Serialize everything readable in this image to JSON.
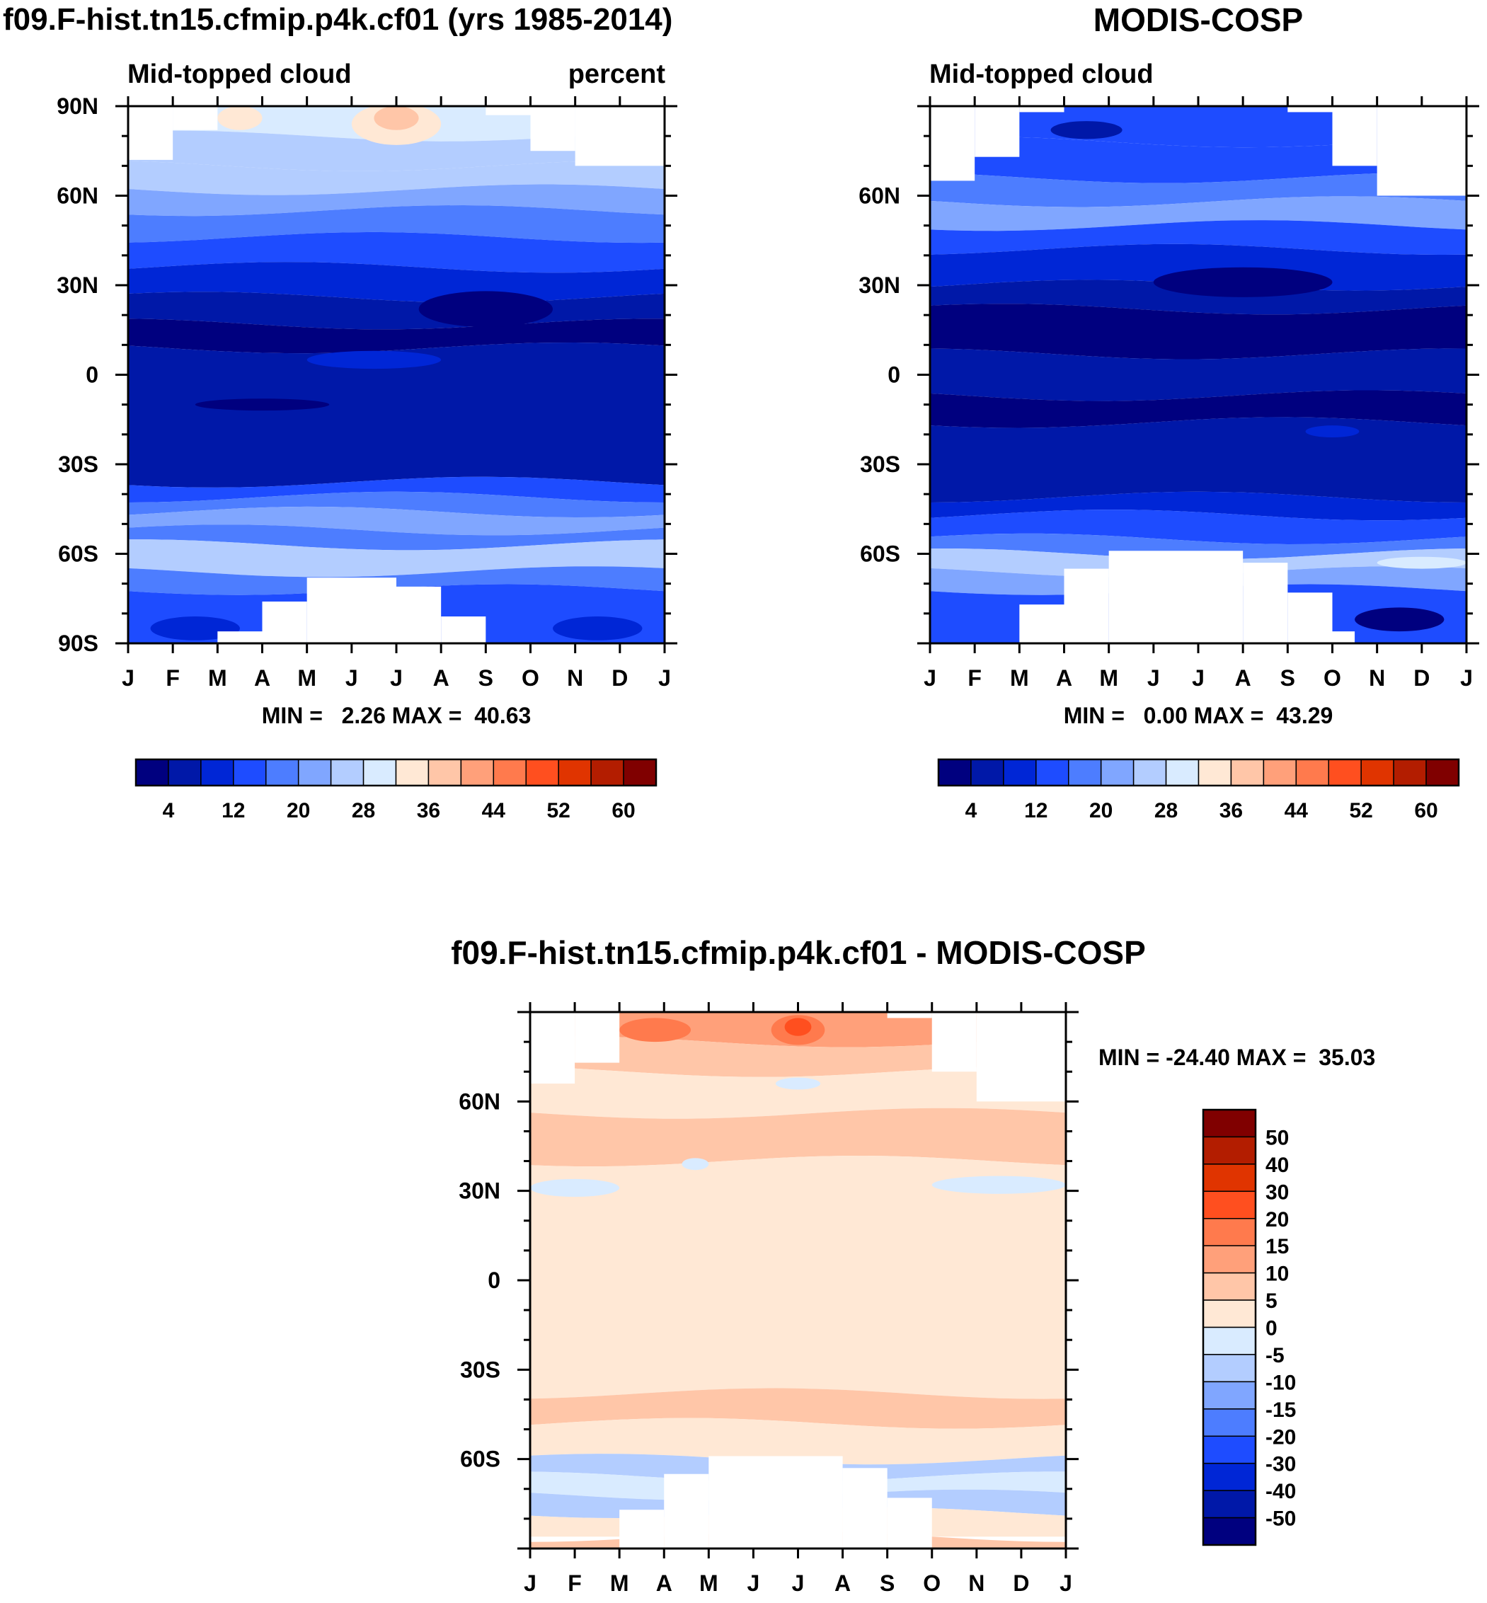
{
  "chart_data": [
    {
      "type": "heatmap",
      "title": "f09.F-hist.tn15.cfmip.p4k.cf01 (yrs 1985-2014)",
      "subtitle_left": "Mid-topped cloud",
      "subtitle_right": "percent",
      "x_ticks": [
        "J",
        "F",
        "M",
        "A",
        "M",
        "J",
        "J",
        "A",
        "S",
        "O",
        "N",
        "D",
        "J"
      ],
      "y_ticks": [
        "90N",
        "60N",
        "30N",
        "0",
        "30S",
        "60S",
        "90S"
      ],
      "ylim": [
        -90,
        90
      ],
      "stats": "MIN =   2.26 MAX =  40.63",
      "min": 2.26,
      "max": 40.63,
      "colorbar": {
        "levels": [
          4,
          8,
          12,
          16,
          20,
          24,
          28,
          32,
          36,
          40,
          44,
          48,
          52,
          56,
          60
        ],
        "tick_labels": [
          "4",
          "12",
          "20",
          "28",
          "36",
          "44",
          "52",
          "60"
        ],
        "colors": [
          "#00007f",
          "#0018a8",
          "#0026d6",
          "#1e4cff",
          "#4d7dff",
          "#80a6ff",
          "#b3cdff",
          "#d9ebff",
          "#ffe8d5",
          "#ffc6a8",
          "#ffa07a",
          "#ff7a4d",
          "#ff4f1f",
          "#e03400",
          "#b31d00",
          "#800000"
        ]
      },
      "lat_bands": [
        {
          "lat_top": 90,
          "lat_bot": 80,
          "value": 28
        },
        {
          "lat_top": 80,
          "lat_bot": 70,
          "value": 27
        },
        {
          "lat_top": 70,
          "lat_bot": 62,
          "value": 25
        },
        {
          "lat_top": 62,
          "lat_bot": 55,
          "value": 22
        },
        {
          "lat_top": 55,
          "lat_bot": 46,
          "value": 18
        },
        {
          "lat_top": 46,
          "lat_bot": 36,
          "value": 14
        },
        {
          "lat_top": 36,
          "lat_bot": 26,
          "value": 10
        },
        {
          "lat_top": 26,
          "lat_bot": 17,
          "value": 6
        },
        {
          "lat_top": 17,
          "lat_bot": 9,
          "value": 3
        },
        {
          "lat_top": 9,
          "lat_bot": -36,
          "value": 6
        },
        {
          "lat_top": -36,
          "lat_bot": -41,
          "value": 14
        },
        {
          "lat_top": -41,
          "lat_bot": -46,
          "value": 18
        },
        {
          "lat_top": -46,
          "lat_bot": -52,
          "value": 22
        },
        {
          "lat_top": -52,
          "lat_bot": -57,
          "value": 19
        },
        {
          "lat_top": -57,
          "lat_bot": -66,
          "value": 25
        },
        {
          "lat_top": -66,
          "lat_bot": -72,
          "value": 18
        },
        {
          "lat_top": -72,
          "lat_bot": -90,
          "value": 13
        }
      ],
      "features": [
        {
          "month": 6.0,
          "lat": 84,
          "dm": 1.0,
          "dlat": 7,
          "value": 34
        },
        {
          "month": 6.0,
          "lat": 86,
          "dm": 0.5,
          "dlat": 4,
          "value": 37
        },
        {
          "month": 2.5,
          "lat": 86,
          "dm": 0.5,
          "dlat": 4,
          "value": 34
        },
        {
          "month": 8.0,
          "lat": 22,
          "dm": 1.5,
          "dlat": 6,
          "value": 3
        },
        {
          "month": 5.5,
          "lat": 5,
          "dm": 1.5,
          "dlat": 3,
          "value": 10
        },
        {
          "month": 3.0,
          "lat": -10,
          "dm": 1.5,
          "dlat": 2,
          "value": 3
        },
        {
          "month": 10.5,
          "lat": -85,
          "dm": 1.0,
          "dlat": 4,
          "value": 10
        },
        {
          "month": 1.5,
          "lat": -85,
          "dm": 1.0,
          "dlat": 4,
          "value": 10
        }
      ],
      "missing": [
        {
          "m0": 0,
          "m1": 1,
          "lat_top": 90,
          "lat_bot": 72
        },
        {
          "m0": 1,
          "m1": 2,
          "lat_top": 90,
          "lat_bot": 82
        },
        {
          "m0": 8,
          "m1": 9,
          "lat_top": 90,
          "lat_bot": 87
        },
        {
          "m0": 9,
          "m1": 10,
          "lat_top": 90,
          "lat_bot": 75
        },
        {
          "m0": 10,
          "m1": 12,
          "lat_top": 90,
          "lat_bot": 70
        },
        {
          "m0": 2,
          "m1": 3,
          "lat_top": -86,
          "lat_bot": -90
        },
        {
          "m0": 3,
          "m1": 4,
          "lat_top": -76,
          "lat_bot": -90
        },
        {
          "m0": 4,
          "m1": 6,
          "lat_top": -68,
          "lat_bot": -90
        },
        {
          "m0": 6,
          "m1": 7,
          "lat_top": -71,
          "lat_bot": -90
        },
        {
          "m0": 7,
          "m1": 8,
          "lat_top": -81,
          "lat_bot": -90
        }
      ]
    },
    {
      "type": "heatmap",
      "title": "MODIS-COSP",
      "subtitle_left": "Mid-topped cloud",
      "subtitle_right": "",
      "x_ticks": [
        "J",
        "F",
        "M",
        "A",
        "M",
        "J",
        "J",
        "A",
        "S",
        "O",
        "N",
        "D",
        "J"
      ],
      "y_ticks": [
        "60N",
        "30N",
        "0",
        "30S",
        "60S"
      ],
      "ylim": [
        -90,
        90
      ],
      "stats": "MIN =   0.00 MAX =  43.29",
      "min": 0.0,
      "max": 43.29,
      "colorbar": {
        "levels": [
          4,
          8,
          12,
          16,
          20,
          24,
          28,
          32,
          36,
          40,
          44,
          48,
          52,
          56,
          60
        ],
        "tick_labels": [
          "4",
          "12",
          "20",
          "28",
          "36",
          "44",
          "52",
          "60"
        ],
        "colors": [
          "#00007f",
          "#0018a8",
          "#0026d6",
          "#1e4cff",
          "#4d7dff",
          "#80a6ff",
          "#b3cdff",
          "#d9ebff",
          "#ffe8d5",
          "#ffc6a8",
          "#ffa07a",
          "#ff7a4d",
          "#ff4f1f",
          "#e03400",
          "#b31d00",
          "#800000"
        ]
      },
      "lat_bands": [
        {
          "lat_top": 90,
          "lat_bot": 78,
          "value": 12
        },
        {
          "lat_top": 78,
          "lat_bot": 66,
          "value": 14
        },
        {
          "lat_top": 66,
          "lat_bot": 58,
          "value": 18
        },
        {
          "lat_top": 58,
          "lat_bot": 50,
          "value": 22
        },
        {
          "lat_top": 50,
          "lat_bot": 42,
          "value": 14
        },
        {
          "lat_top": 42,
          "lat_bot": 30,
          "value": 10
        },
        {
          "lat_top": 30,
          "lat_bot": 22,
          "value": 7
        },
        {
          "lat_top": 22,
          "lat_bot": 7,
          "value": 2
        },
        {
          "lat_top": 7,
          "lat_bot": -7,
          "value": 6
        },
        {
          "lat_top": -7,
          "lat_bot": -16,
          "value": 3
        },
        {
          "lat_top": -16,
          "lat_bot": -41,
          "value": 6
        },
        {
          "lat_top": -41,
          "lat_bot": -47,
          "value": 10
        },
        {
          "lat_top": -47,
          "lat_bot": -55,
          "value": 14
        },
        {
          "lat_top": -55,
          "lat_bot": -60,
          "value": 18
        },
        {
          "lat_top": -60,
          "lat_bot": -66,
          "value": 26
        },
        {
          "lat_top": -66,
          "lat_bot": -72,
          "value": 21
        },
        {
          "lat_top": -72,
          "lat_bot": -90,
          "value": 12
        }
      ],
      "features": [
        {
          "month": 3.5,
          "lat": 82,
          "dm": 0.8,
          "dlat": 3,
          "value": 5
        },
        {
          "month": 7.0,
          "lat": 31,
          "dm": 2.0,
          "dlat": 5,
          "value": 2
        },
        {
          "month": 9.0,
          "lat": -19,
          "dm": 0.6,
          "dlat": 2,
          "value": 10
        },
        {
          "month": 11.0,
          "lat": -63,
          "dm": 1.0,
          "dlat": 2,
          "value": 30
        },
        {
          "month": 10.5,
          "lat": -82,
          "dm": 1.0,
          "dlat": 4,
          "value": 3
        }
      ],
      "missing": [
        {
          "m0": 0,
          "m1": 1,
          "lat_top": 90,
          "lat_bot": 65
        },
        {
          "m0": 1,
          "m1": 2,
          "lat_top": 90,
          "lat_bot": 73
        },
        {
          "m0": 2,
          "m1": 3,
          "lat_top": 90,
          "lat_bot": 88
        },
        {
          "m0": 8,
          "m1": 9,
          "lat_top": 90,
          "lat_bot": 88
        },
        {
          "m0": 9,
          "m1": 10,
          "lat_top": 90,
          "lat_bot": 70
        },
        {
          "m0": 10,
          "m1": 12,
          "lat_top": 90,
          "lat_bot": 60
        },
        {
          "m0": 2,
          "m1": 3,
          "lat_top": -77,
          "lat_bot": -90
        },
        {
          "m0": 3,
          "m1": 4,
          "lat_top": -65,
          "lat_bot": -90
        },
        {
          "m0": 4,
          "m1": 7,
          "lat_top": -59,
          "lat_bot": -90
        },
        {
          "m0": 7,
          "m1": 8,
          "lat_top": -63,
          "lat_bot": -90
        },
        {
          "m0": 8,
          "m1": 9,
          "lat_top": -73,
          "lat_bot": -90
        },
        {
          "m0": 9,
          "m1": 9.5,
          "lat_top": -86,
          "lat_bot": -90
        }
      ]
    },
    {
      "type": "heatmap",
      "title": "f09.F-hist.tn15.cfmip.p4k.cf01 - MODIS-COSP",
      "x_ticks": [
        "J",
        "F",
        "M",
        "A",
        "M",
        "J",
        "J",
        "A",
        "S",
        "O",
        "N",
        "D",
        "J"
      ],
      "y_ticks": [
        "60N",
        "30N",
        "0",
        "30S",
        "60S"
      ],
      "ylim": [
        -90,
        90
      ],
      "stats": "MIN = -24.40 MAX =  35.03",
      "min": -24.4,
      "max": 35.03,
      "colorbar": {
        "levels": [
          -50,
          -40,
          -30,
          -20,
          -15,
          -10,
          -5,
          0,
          5,
          10,
          15,
          20,
          30,
          40,
          50
        ],
        "tick_labels": [
          "50",
          "40",
          "30",
          "20",
          "15",
          "10",
          "5",
          "0",
          "-5",
          "-10",
          "-15",
          "-20",
          "-30",
          "-40",
          "-50"
        ],
        "colors": [
          "#00007f",
          "#0018a8",
          "#0026d6",
          "#1e4cff",
          "#4d7dff",
          "#80a6ff",
          "#b3cdff",
          "#d9ebff",
          "#ffe8d5",
          "#ffc6a8",
          "#ffa07a",
          "#ff7a4d",
          "#ff4f1f",
          "#e03400",
          "#b31d00",
          "#800000"
        ]
      },
      "lat_bands": [
        {
          "lat_top": 90,
          "lat_bot": 80,
          "value": 13
        },
        {
          "lat_top": 80,
          "lat_bot": 70,
          "value": 8
        },
        {
          "lat_top": 70,
          "lat_bot": 56,
          "value": 3
        },
        {
          "lat_top": 56,
          "lat_bot": 40,
          "value": 7
        },
        {
          "lat_top": 40,
          "lat_bot": -38,
          "value": 3
        },
        {
          "lat_top": -38,
          "lat_bot": -48,
          "value": 7
        },
        {
          "lat_top": -48,
          "lat_bot": -60,
          "value": 3
        },
        {
          "lat_top": -60,
          "lat_bot": -66,
          "value": -7
        },
        {
          "lat_top": -66,
          "lat_bot": -72,
          "value": -3
        },
        {
          "lat_top": -72,
          "lat_bot": -78,
          "value": -7
        },
        {
          "lat_top": -78,
          "lat_bot": -86,
          "value": 3
        },
        {
          "lat_top": -86,
          "lat_bot": -90,
          "value": 8
        }
      ],
      "features": [
        {
          "month": 2.8,
          "lat": 84,
          "dm": 0.8,
          "dlat": 4,
          "value": 17
        },
        {
          "month": 6.0,
          "lat": 84,
          "dm": 0.6,
          "dlat": 5,
          "value": 17
        },
        {
          "month": 6.0,
          "lat": 85,
          "dm": 0.3,
          "dlat": 3,
          "value": 25
        },
        {
          "month": 6.0,
          "lat": 66,
          "dm": 0.5,
          "dlat": 2,
          "value": -3
        },
        {
          "month": 1.0,
          "lat": 31,
          "dm": 1.0,
          "dlat": 3,
          "value": -3
        },
        {
          "month": 10.5,
          "lat": 32,
          "dm": 1.5,
          "dlat": 3,
          "value": -3
        },
        {
          "month": 3.7,
          "lat": 39,
          "dm": 0.3,
          "dlat": 2,
          "value": -3
        }
      ],
      "missing": [
        {
          "m0": 0,
          "m1": 1,
          "lat_top": 90,
          "lat_bot": 66
        },
        {
          "m0": 1,
          "m1": 2,
          "lat_top": 90,
          "lat_bot": 73
        },
        {
          "m0": 8,
          "m1": 9,
          "lat_top": 90,
          "lat_bot": 88
        },
        {
          "m0": 9,
          "m1": 10,
          "lat_top": 90,
          "lat_bot": 70
        },
        {
          "m0": 10,
          "m1": 12,
          "lat_top": 90,
          "lat_bot": 60
        },
        {
          "m0": 2,
          "m1": 3,
          "lat_top": -77,
          "lat_bot": -90
        },
        {
          "m0": 3,
          "m1": 4,
          "lat_top": -65,
          "lat_bot": -90
        },
        {
          "m0": 4,
          "m1": 7,
          "lat_top": -59,
          "lat_bot": -90
        },
        {
          "m0": 7,
          "m1": 8,
          "lat_top": -63,
          "lat_bot": -90
        },
        {
          "m0": 8,
          "m1": 9,
          "lat_top": -73,
          "lat_bot": -90
        }
      ]
    }
  ]
}
